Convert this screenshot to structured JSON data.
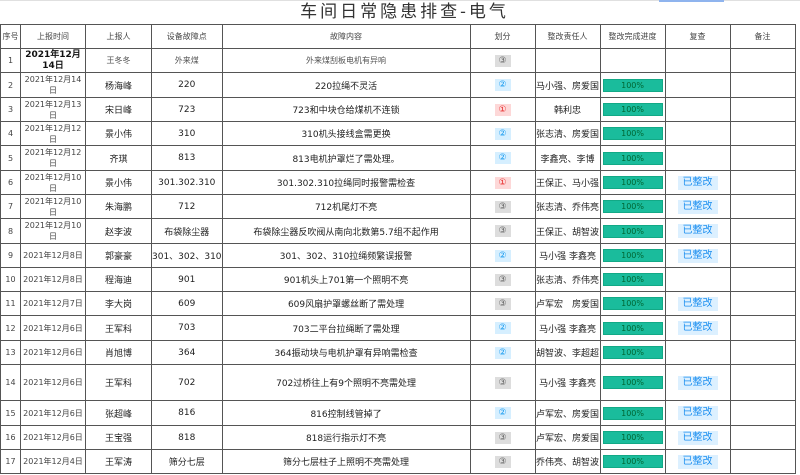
{
  "title": "车间日常隐患排查-电气",
  "headers": [
    "序号",
    "上报时间",
    "上报人",
    "设备故障点",
    "故障内容",
    "划分",
    "整改责任人",
    "整改完成进度",
    "复查",
    "备注"
  ],
  "rows": [
    {
      "no": "1",
      "date": "2021年12月14日",
      "reporter": "王冬冬",
      "point": "外来煤",
      "content": "外来煤刮板电机有异响",
      "score": "③",
      "level": 3,
      "resp": "",
      "progress": "",
      "review": ""
    },
    {
      "no": "2",
      "date": "2021年12月14日",
      "reporter": "杨海峰",
      "point": "220",
      "content": "220拉绳不灵活",
      "score": "②",
      "level": 2,
      "resp": "马小强、房爱国",
      "progress": "100%",
      "review": ""
    },
    {
      "no": "3",
      "date": "2021年12月13日",
      "reporter": "宋日峰",
      "point": "723",
      "content": "723和中块仓给煤机不连锁",
      "score": "①",
      "level": 1,
      "resp": "韩利忠",
      "progress": "100%",
      "review": ""
    },
    {
      "no": "4",
      "date": "2021年12月12日",
      "reporter": "景小伟",
      "point": "310",
      "content": "310机头接线盒需更换",
      "score": "②",
      "level": 2,
      "resp": "张志清、房爱国",
      "progress": "100%",
      "review": ""
    },
    {
      "no": "5",
      "date": "2021年12月12日",
      "reporter": "齐琪",
      "point": "813",
      "content": "813电机护罩烂了需处理。",
      "score": "②",
      "level": 2,
      "resp": "李鑫亮、李博",
      "progress": "100%",
      "review": ""
    },
    {
      "no": "6",
      "date": "2021年12月10日",
      "reporter": "景小伟",
      "point": "301.302.310",
      "content": "301.302.310拉绳同时报警需检查",
      "score": "①",
      "level": 1,
      "resp": "王保正、马小强",
      "progress": "100%",
      "review": "已整改"
    },
    {
      "no": "7",
      "date": "2021年12月10日",
      "reporter": "朱海鹏",
      "point": "712",
      "content": "712机尾灯不亮",
      "score": "③",
      "level": 3,
      "resp": "张志清、乔伟亮",
      "progress": "100%",
      "review": "已整改"
    },
    {
      "no": "8",
      "date": "2021年12月10日",
      "reporter": "赵李波",
      "point": "布袋除尘器",
      "content": "布袋除尘器反吹阀从南向北数第5.7组不起作用",
      "score": "③",
      "level": 3,
      "resp": "王保正、胡智波",
      "progress": "100%",
      "review": "已整改"
    },
    {
      "no": "9",
      "date": "2021年12月8日",
      "reporter": "郭豪豪",
      "point": "301、302、310",
      "content": "301、302、310拉绳频繁误报警",
      "score": "②",
      "level": 2,
      "resp": "马小强 李鑫亮",
      "progress": "100%",
      "review": "已整改"
    },
    {
      "no": "10",
      "date": "2021年12月8日",
      "reporter": "程海迪",
      "point": "901",
      "content": "901机头上701第一个照明不亮",
      "score": "③",
      "level": 3,
      "resp": "张志清、乔伟亮",
      "progress": "100%",
      "review": ""
    },
    {
      "no": "11",
      "date": "2021年12月7日",
      "reporter": "李大岗",
      "point": "609",
      "content": "609风扇护罩螺丝断了需处理",
      "score": "③",
      "level": 3,
      "resp": "卢军宏　房爱国",
      "progress": "100%",
      "review": "已整改"
    },
    {
      "no": "12",
      "date": "2021年12月6日",
      "reporter": "王军科",
      "point": "703",
      "content": "703二平台拉绳断了需处理",
      "score": "②",
      "level": 2,
      "resp": "马小强 李鑫亮",
      "progress": "100%",
      "review": "已整改"
    },
    {
      "no": "13",
      "date": "2021年12月6日",
      "reporter": "肖旭博",
      "point": "364",
      "content": "364振动块与电机护罩有异响需检查",
      "score": "②",
      "level": 2,
      "resp": "胡智波、李超超",
      "progress": "100%",
      "review": ""
    },
    {
      "no": "14",
      "date": "2021年12月6日",
      "reporter": "王军科",
      "point": "702",
      "content": "702过桥往上有9个照明不亮需处理",
      "score": "③",
      "level": 3,
      "resp": "马小强 李鑫亮",
      "progress": "100%",
      "review": "已整改"
    },
    {
      "no": "15",
      "date": "2021年12月6日",
      "reporter": "张超峰",
      "point": "816",
      "content": "816控制线管掉了",
      "score": "②",
      "level": 2,
      "resp": "卢军宏、房爱国",
      "progress": "100%",
      "review": "已整改"
    },
    {
      "no": "16",
      "date": "2021年12月6日",
      "reporter": "王宝强",
      "point": "818",
      "content": "818运行指示灯不亮",
      "score": "③",
      "level": 3,
      "resp": "卢军宏、房爱国",
      "progress": "100%",
      "review": "已整改"
    },
    {
      "no": "17",
      "date": "2021年12月4日",
      "reporter": "王军涛",
      "point": "筛分七层",
      "content": "筛分七层柱子上照明不亮需处理",
      "score": "③",
      "level": 3,
      "resp": "乔伟亮、胡智波",
      "progress": "100%",
      "review": "已整改"
    }
  ],
  "colors": {
    "progress": "#1abc9c",
    "level1": "#e83030",
    "level2": "#1b9cf0",
    "level3": "#666666",
    "review": "#1e90f0"
  }
}
